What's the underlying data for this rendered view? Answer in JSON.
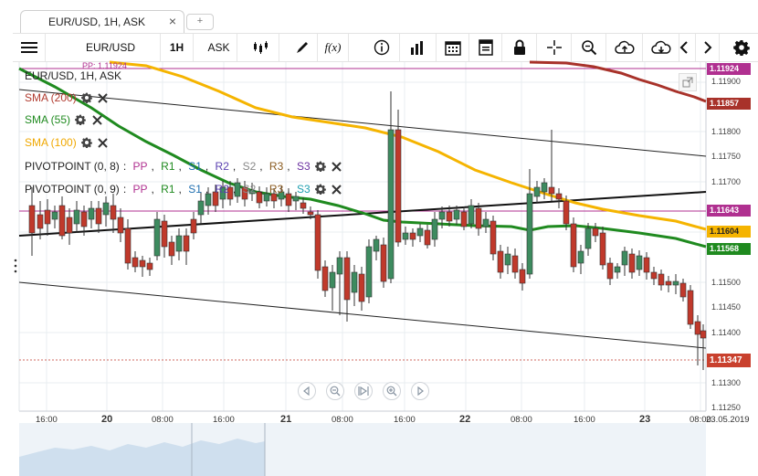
{
  "tab": {
    "title": "EUR/USD, 1H, ASK",
    "close": "×",
    "new": "+"
  },
  "toolbar": {
    "symbol": "EUR/USD",
    "period": "1H",
    "side": "ASK",
    "fx_label": "f(x)"
  },
  "legend": {
    "instrument": "EUR/USD, 1H, ASK",
    "pp_tag": "PP: 1.11924",
    "sma200": {
      "label": "SMA (200)",
      "color": "#b03a2e"
    },
    "sma55": {
      "label": "SMA (55)",
      "color": "#1f8a1f"
    },
    "sma100": {
      "label": "SMA (100)",
      "color": "#f0a800"
    },
    "pivot1": {
      "label": "PIVOTPOINT (0, 8)",
      "parts": [
        ": ",
        "PP",
        ", ",
        "R1",
        ", ",
        "S1",
        ", ",
        "R2",
        ", ",
        "S2",
        ", ",
        "R3",
        ", ",
        "S3"
      ]
    },
    "pivot2": {
      "label": "PIVOTPOINT (0, 9)",
      "parts": [
        ": ",
        "PP",
        ", ",
        "R1",
        ", ",
        "S1",
        ", ",
        "R2",
        ", ",
        "S2",
        ", ",
        "R3",
        ", ",
        "S3"
      ]
    }
  },
  "yaxis": [
    "1.11924",
    "1.11900",
    "1.11857",
    "1.11800",
    "1.11750",
    "1.11700",
    "1.11643",
    "1.11604",
    "1.11568",
    "1.11500",
    "1.11450",
    "1.11400",
    "1.11347",
    "1.11300",
    "1.11250"
  ],
  "price_tags": {
    "pp": "1.11924",
    "sma200": "1.11857",
    "pivot": "1.11643",
    "sma100": "1.11604",
    "sma55": "1.11568",
    "current": "1.11347"
  },
  "xaxis": [
    "16:00",
    "20",
    "08:00",
    "16:00",
    "21",
    "08:00",
    "16:00",
    "22",
    "08:00",
    "16:00",
    "23",
    "08:00",
    "23.05.2019"
  ],
  "colors": {
    "up": "#3d8b5f",
    "down": "#c0392b",
    "sma200": "#b03a2e",
    "sma55": "#1f8a1f",
    "sma100": "#f5b400",
    "pivot": "#b03090"
  }
}
